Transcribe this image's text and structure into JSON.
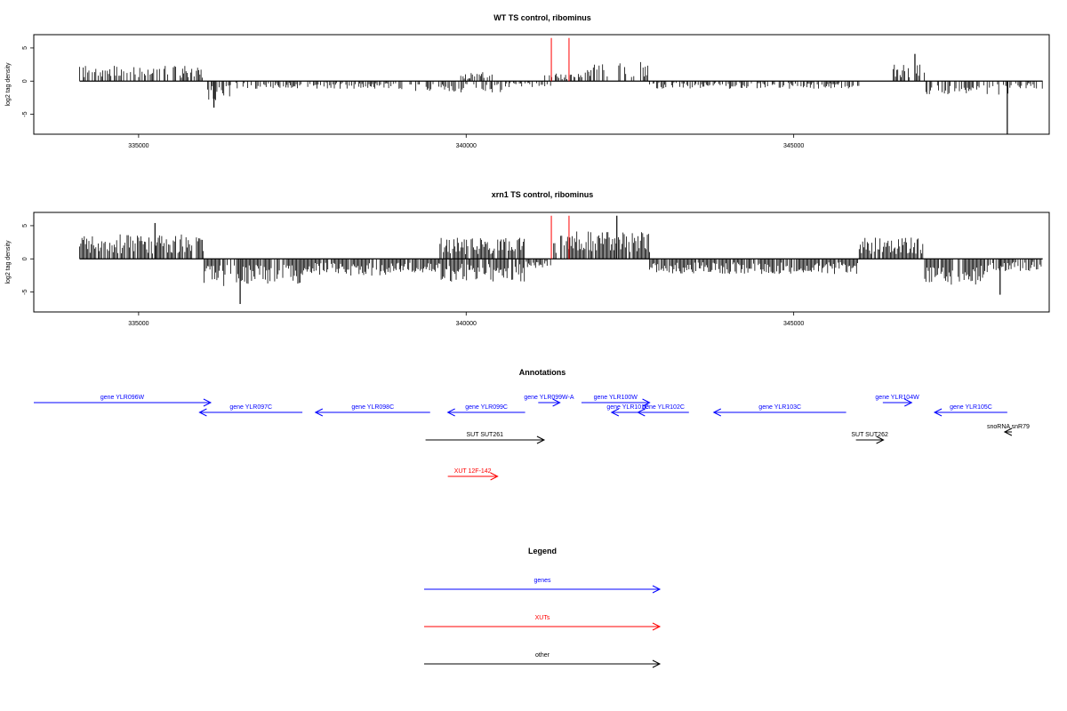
{
  "colors": {
    "genes": "#0000ff",
    "xuts": "#ff0000",
    "other": "#000000",
    "bars": "#000000",
    "highlight": "#ff0000"
  },
  "chart_data": [
    {
      "type": "bar",
      "title": "WT TS control, ribominus",
      "ylabel": "log2 tag density",
      "xlim": [
        333400,
        348900
      ],
      "ylim": [
        -8,
        7
      ],
      "xticks": [
        "335000",
        "340000",
        "345000"
      ],
      "yticks": [
        "5",
        "0",
        "-5"
      ],
      "highlight_x": [
        341300,
        341570
      ],
      "highlight_height": 6.5,
      "segments": [
        {
          "x0": 334100,
          "x1": 336000,
          "y": 2.0
        },
        {
          "x0": 336000,
          "x1": 336400,
          "y": -2.5
        },
        {
          "x0": 336400,
          "x1": 339000,
          "y": -1.0
        },
        {
          "x0": 339000,
          "x1": 339800,
          "y": -1.4
        },
        {
          "x0": 339800,
          "x1": 340600,
          "y": -1.6
        },
        {
          "x0": 339900,
          "x1": 340400,
          "y": 1.2
        },
        {
          "x0": 340600,
          "x1": 341300,
          "y": -0.8
        },
        {
          "x0": 341200,
          "x1": 341800,
          "y": 1.0
        },
        {
          "x0": 341800,
          "x1": 342800,
          "y": 2.5
        },
        {
          "x0": 342800,
          "x1": 346000,
          "y": -1.0
        },
        {
          "x0": 346500,
          "x1": 347000,
          "y": 2.2
        },
        {
          "x0": 347000,
          "x1": 348300,
          "y": -1.8
        },
        {
          "x0": 348300,
          "x1": 348800,
          "y": -1.0
        }
      ],
      "spikes": [
        {
          "x": 336150,
          "y": -4.0
        },
        {
          "x": 346850,
          "y": 4.1
        },
        {
          "x": 348260,
          "y": -8.0
        }
      ]
    },
    {
      "type": "bar",
      "title": "xrn1 TS control, ribominus",
      "ylabel": "log2 tag density",
      "xlim": [
        333400,
        348900
      ],
      "ylim": [
        -8,
        7
      ],
      "xticks": [
        "335000",
        "340000",
        "345000"
      ],
      "yticks": [
        "5",
        "0",
        "-5"
      ],
      "highlight_x": [
        341300,
        341570
      ],
      "highlight_height": 6.5,
      "segments": [
        {
          "x0": 334100,
          "x1": 336000,
          "y": 3.2
        },
        {
          "x0": 336000,
          "x1": 337500,
          "y": -3.6
        },
        {
          "x0": 337500,
          "x1": 339000,
          "y": -2.2
        },
        {
          "x0": 339000,
          "x1": 339600,
          "y": -1.8
        },
        {
          "x0": 339600,
          "x1": 340900,
          "y": -3.0
        },
        {
          "x0": 339600,
          "x1": 340900,
          "y": 2.8
        },
        {
          "x0": 340900,
          "x1": 341300,
          "y": -1.2
        },
        {
          "x0": 341300,
          "x1": 342800,
          "y": 3.6
        },
        {
          "x0": 342800,
          "x1": 346000,
          "y": -2.0
        },
        {
          "x0": 346000,
          "x1": 347000,
          "y": 2.8
        },
        {
          "x0": 347000,
          "x1": 348000,
          "y": -3.4
        },
        {
          "x0": 348000,
          "x1": 348800,
          "y": -1.6
        }
      ],
      "spikes": [
        {
          "x": 335250,
          "y": 5.4
        },
        {
          "x": 336550,
          "y": -6.8
        },
        {
          "x": 342300,
          "y": 6.5
        },
        {
          "x": 348150,
          "y": -5.4
        }
      ]
    },
    {
      "type": "table",
      "title": "Annotations",
      "xlim": [
        333400,
        348900
      ],
      "features": [
        {
          "label": "gene YLR096W",
          "kind": "genes",
          "start": 332900,
          "end": 336100,
          "strand": "+",
          "row": 0
        },
        {
          "label": "gene YLR097C",
          "kind": "genes",
          "start": 335930,
          "end": 337500,
          "strand": "-",
          "row": 1
        },
        {
          "label": "gene YLR098C",
          "kind": "genes",
          "start": 337700,
          "end": 339450,
          "strand": "-",
          "row": 1
        },
        {
          "label": "gene YLR099C",
          "kind": "genes",
          "start": 339720,
          "end": 340900,
          "strand": "-",
          "row": 1
        },
        {
          "label": "gene YLR099W-A",
          "kind": "genes",
          "start": 341100,
          "end": 341430,
          "strand": "+",
          "row": 0
        },
        {
          "label": "gene YLR100W",
          "kind": "genes",
          "start": 341760,
          "end": 342800,
          "strand": "+",
          "row": 0
        },
        {
          "label": "gene YLR101C",
          "kind": "genes",
          "start": 342220,
          "end": 342720,
          "strand": "-",
          "row": 1
        },
        {
          "label": "gene YLR102C",
          "kind": "genes",
          "start": 342620,
          "end": 343400,
          "strand": "-",
          "row": 1
        },
        {
          "label": "gene YLR103C",
          "kind": "genes",
          "start": 343780,
          "end": 345800,
          "strand": "-",
          "row": 1
        },
        {
          "label": "gene YLR104W",
          "kind": "genes",
          "start": 346360,
          "end": 346800,
          "strand": "+",
          "row": 0
        },
        {
          "label": "gene YLR105C",
          "kind": "genes",
          "start": 347150,
          "end": 348260,
          "strand": "-",
          "row": 1
        },
        {
          "label": "SUT SUT261",
          "kind": "other",
          "start": 339380,
          "end": 341190,
          "strand": "+",
          "row": 3
        },
        {
          "label": "SUT SUT262",
          "kind": "other",
          "start": 345950,
          "end": 346370,
          "strand": "+",
          "row": 3
        },
        {
          "label": "snoRNA snR79",
          "kind": "other",
          "start": 348220,
          "end": 348330,
          "strand": "-",
          "row": 2
        },
        {
          "label": "XUT 12F-142",
          "kind": "xuts",
          "start": 339720,
          "end": 340480,
          "strand": "+",
          "row": 5
        }
      ]
    },
    {
      "type": "table",
      "title": "Legend",
      "entries": [
        {
          "label": "genes",
          "kind": "genes"
        },
        {
          "label": "XUTs",
          "kind": "xuts"
        },
        {
          "label": "other",
          "kind": "other"
        }
      ]
    }
  ]
}
